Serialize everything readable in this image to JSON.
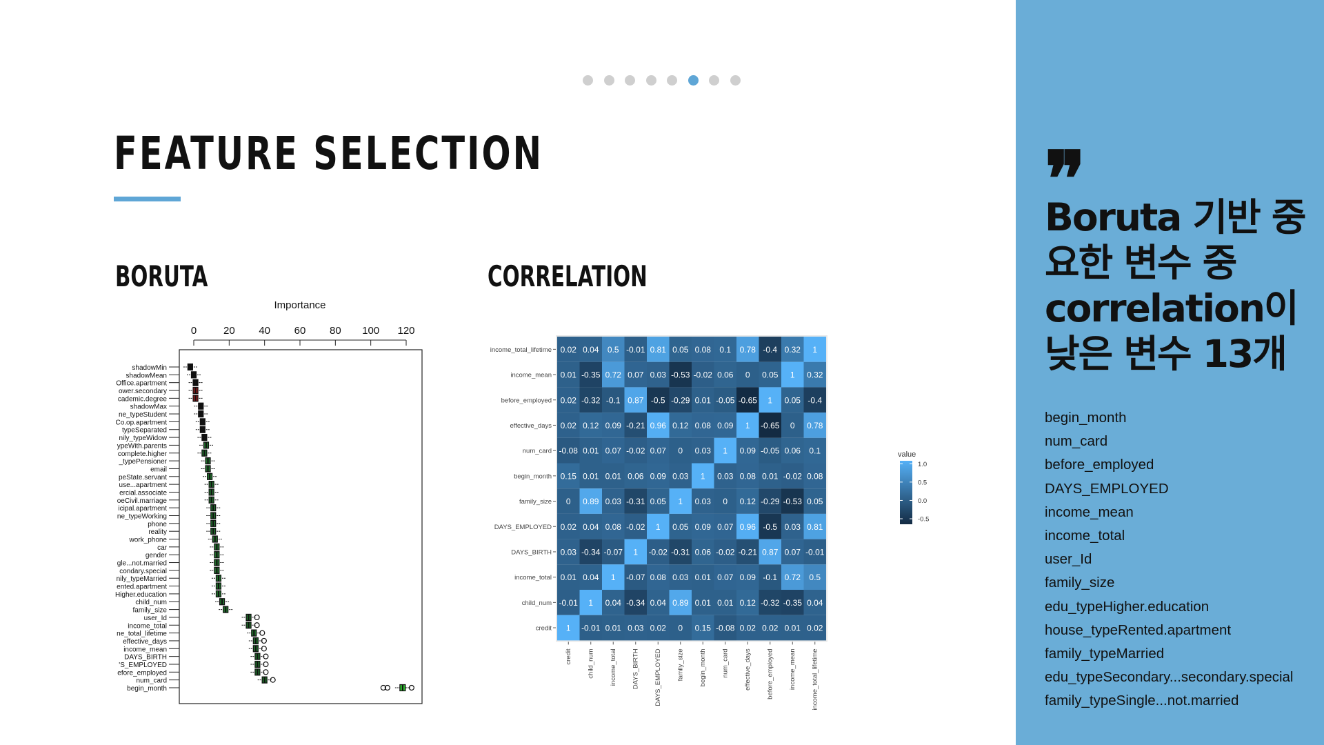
{
  "slide": {
    "title": "FEATURE SELECTION",
    "pagination": {
      "count": 8,
      "active_index": 5
    }
  },
  "sections": {
    "boruta_title": "BORUTA",
    "correlation_title": "CORRELATION"
  },
  "sidebar": {
    "quote_mark": "❞",
    "headline": "Boruta 기반 중요한 변수 중 correlation이 낮은 변수 13개",
    "features": [
      "begin_month",
      "num_card",
      "before_employed",
      "DAYS_EMPLOYED",
      "income_mean",
      "income_total",
      "user_Id",
      "family_size",
      "edu_typeHigher.education",
      "house_typeRented.apartment",
      "family_typeMarried",
      "edu_typeSecondary...secondary.special",
      "family_typeSingle...not.married"
    ]
  },
  "chart_data": [
    {
      "type": "box",
      "title": "Importance",
      "xlim": [
        0,
        120
      ],
      "xticks": [
        0,
        20,
        40,
        60,
        80,
        100,
        120
      ],
      "colors": {
        "shadow": "#111111",
        "rejected": "#8b1a1a",
        "confirmed": "#1f6b2a",
        "top": "#2fb82f"
      },
      "rows": [
        {
          "label": "shadowMin",
          "median": -2,
          "status": "shadow"
        },
        {
          "label": "shadowMean",
          "median": 0,
          "status": "shadow"
        },
        {
          "label": "Office.apartment",
          "median": 1,
          "status": "shadow"
        },
        {
          "label": "ower.secondary",
          "median": 1,
          "status": "rejected"
        },
        {
          "label": "cademic.degree",
          "median": 1,
          "status": "rejected"
        },
        {
          "label": "shadowMax",
          "median": 4,
          "status": "shadow"
        },
        {
          "label": "ne_typeStudent",
          "median": 4,
          "status": "shadow"
        },
        {
          "label": "Co.op.apartment",
          "median": 5,
          "status": "shadow"
        },
        {
          "label": "typeSeparated",
          "median": 5,
          "status": "shadow"
        },
        {
          "label": "nily_typeWidow",
          "median": 6,
          "status": "shadow"
        },
        {
          "label": "ypeWith.parents",
          "median": 7,
          "status": "confirmed"
        },
        {
          "label": "complete.higher",
          "median": 6,
          "status": "confirmed"
        },
        {
          "label": "_typePensioner",
          "median": 8,
          "status": "confirmed"
        },
        {
          "label": "email",
          "median": 8,
          "status": "confirmed"
        },
        {
          "label": "peState.servant",
          "median": 9,
          "status": "confirmed"
        },
        {
          "label": "use...apartment",
          "median": 10,
          "status": "confirmed"
        },
        {
          "label": "ercial.associate",
          "median": 10,
          "status": "confirmed"
        },
        {
          "label": "oeCivil.marriage",
          "median": 10,
          "status": "confirmed"
        },
        {
          "label": "icipal.apartment",
          "median": 11,
          "status": "confirmed"
        },
        {
          "label": "ne_typeWorking",
          "median": 11,
          "status": "confirmed"
        },
        {
          "label": "phone",
          "median": 11,
          "status": "confirmed"
        },
        {
          "label": "reality",
          "median": 11,
          "status": "confirmed"
        },
        {
          "label": "work_phone",
          "median": 12,
          "status": "confirmed"
        },
        {
          "label": "car",
          "median": 13,
          "status": "confirmed"
        },
        {
          "label": "gender",
          "median": 13,
          "status": "confirmed"
        },
        {
          "label": "gle...not.married",
          "median": 13,
          "status": "confirmed"
        },
        {
          "label": "condary.special",
          "median": 13,
          "status": "confirmed"
        },
        {
          "label": "nily_typeMarried",
          "median": 14,
          "status": "confirmed"
        },
        {
          "label": "ented.apartment",
          "median": 14,
          "status": "confirmed"
        },
        {
          "label": "Higher.education",
          "median": 14,
          "status": "confirmed"
        },
        {
          "label": "child_num",
          "median": 16,
          "status": "confirmed"
        },
        {
          "label": "family_size",
          "median": 18,
          "status": "confirmed"
        },
        {
          "label": "user_Id",
          "median": 31,
          "status": "confirmed"
        },
        {
          "label": "income_total",
          "median": 31,
          "status": "confirmed"
        },
        {
          "label": "ne_total_lifetime",
          "median": 34,
          "status": "confirmed"
        },
        {
          "label": "effective_days",
          "median": 35,
          "status": "confirmed"
        },
        {
          "label": "income_mean",
          "median": 35,
          "status": "confirmed"
        },
        {
          "label": "DAYS_BIRTH",
          "median": 36,
          "status": "confirmed"
        },
        {
          "label": "'S_EMPLOYED",
          "median": 36,
          "status": "confirmed"
        },
        {
          "label": "efore_employed",
          "median": 36,
          "status": "confirmed"
        },
        {
          "label": "num_card",
          "median": 40,
          "status": "confirmed"
        },
        {
          "label": "begin_month",
          "median": 118,
          "status": "top"
        }
      ]
    },
    {
      "type": "heatmap",
      "legend_title": "value",
      "legend_ticks": [
        1.0,
        0.5,
        0.0,
        -0.5
      ],
      "legend_labels": [
        "1.0",
        "0.5",
        "0.0",
        "-0.5"
      ],
      "colors": {
        "low": "#132b43",
        "high": "#56b1f7"
      },
      "range": [
        -0.65,
        1.0
      ],
      "labels": [
        "credit",
        "child_num",
        "income_total",
        "DAYS_BIRTH",
        "DAYS_EMPLOYED",
        "family_size",
        "begin_month",
        "num_card",
        "effective_days",
        "before_employed",
        "income_mean",
        "income_total_lifetime"
      ],
      "rows": [
        {
          "label": "income_total_lifetime",
          "values": [
            0.02,
            0.04,
            0.5,
            -0.01,
            0.81,
            0.05,
            0.08,
            0.1,
            0.78,
            -0.4,
            0.32,
            1
          ]
        },
        {
          "label": "income_mean",
          "values": [
            0.01,
            -0.35,
            0.72,
            0.07,
            0.03,
            -0.53,
            -0.02,
            0.06,
            0,
            0.05,
            1,
            0.32
          ]
        },
        {
          "label": "before_employed",
          "values": [
            0.02,
            -0.32,
            -0.1,
            0.87,
            -0.5,
            -0.29,
            0.01,
            -0.05,
            -0.65,
            1,
            0.05,
            -0.4
          ]
        },
        {
          "label": "effective_days",
          "values": [
            0.02,
            0.12,
            0.09,
            -0.21,
            0.96,
            0.12,
            0.08,
            0.09,
            1,
            -0.65,
            0,
            0.78
          ]
        },
        {
          "label": "num_card",
          "values": [
            -0.08,
            0.01,
            0.07,
            -0.02,
            0.07,
            0,
            0.03,
            1,
            0.09,
            -0.05,
            0.06,
            0.1
          ]
        },
        {
          "label": "begin_month",
          "values": [
            0.15,
            0.01,
            0.01,
            0.06,
            0.09,
            0.03,
            1,
            0.03,
            0.08,
            0.01,
            -0.02,
            0.08
          ]
        },
        {
          "label": "family_size",
          "values": [
            0,
            0.89,
            0.03,
            -0.31,
            0.05,
            1,
            0.03,
            0,
            0.12,
            -0.29,
            -0.53,
            0.05
          ]
        },
        {
          "label": "DAYS_EMPLOYED",
          "values": [
            0.02,
            0.04,
            0.08,
            -0.02,
            1,
            0.05,
            0.09,
            0.07,
            0.96,
            -0.5,
            0.03,
            0.81
          ]
        },
        {
          "label": "DAYS_BIRTH",
          "values": [
            0.03,
            -0.34,
            -0.07,
            1,
            -0.02,
            -0.31,
            0.06,
            -0.02,
            -0.21,
            0.87,
            0.07,
            -0.01
          ]
        },
        {
          "label": "income_total",
          "values": [
            0.01,
            0.04,
            1,
            -0.07,
            0.08,
            0.03,
            0.01,
            0.07,
            0.09,
            -0.1,
            0.72,
            0.5
          ]
        },
        {
          "label": "child_num",
          "values": [
            -0.01,
            1,
            0.04,
            -0.34,
            0.04,
            0.89,
            0.01,
            0.01,
            0.12,
            -0.32,
            -0.35,
            0.04
          ]
        },
        {
          "label": "credit",
          "values": [
            1,
            -0.01,
            0.01,
            0.03,
            0.02,
            0,
            0.15,
            -0.08,
            0.02,
            0.02,
            0.01,
            0.02
          ]
        }
      ]
    }
  ]
}
